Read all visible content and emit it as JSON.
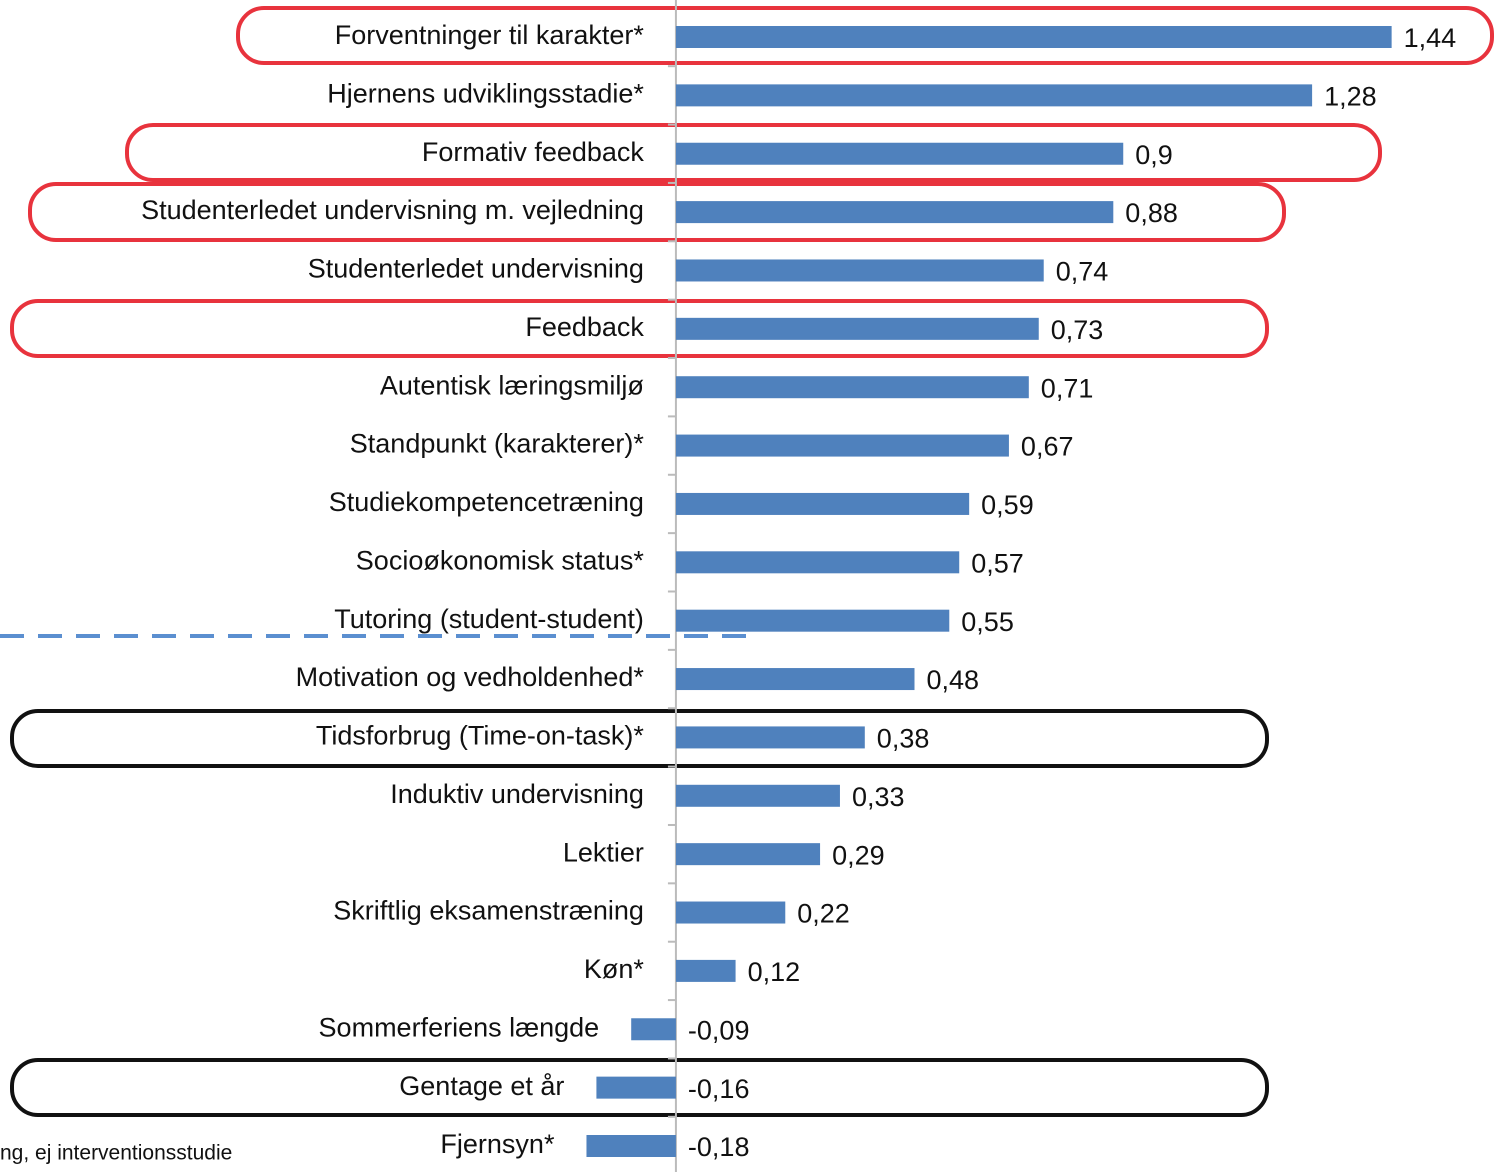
{
  "chart_data": {
    "type": "hbar",
    "categories": [
      "Forventninger til karakter*",
      "Hjernens udviklingsstadie*",
      "Formativ feedback",
      "Studenterledet undervisning m. vejledning",
      "Studenterledet undervisning",
      "Feedback",
      "Autentisk læringsmiljø",
      "Standpunkt (karakterer)*",
      "Studiekompetencetræning",
      "Socioøkonomisk status*",
      "Tutoring (student-student)",
      "Motivation og vedholdenhed*",
      "Tidsforbrug (Time-on-task)*",
      "Induktiv undervisning",
      "Lektier",
      "Skriftlig eksamenstræning",
      "Køn*",
      "Sommerferiens længde",
      "Gentage et år",
      "Fjernsyn*"
    ],
    "values": [
      1.44,
      1.28,
      0.9,
      0.88,
      0.74,
      0.73,
      0.71,
      0.67,
      0.59,
      0.57,
      0.55,
      0.48,
      0.38,
      0.33,
      0.29,
      0.22,
      0.12,
      -0.09,
      -0.16,
      -0.18
    ],
    "value_labels": [
      "1,44",
      "1,28",
      "0,9",
      "0,88",
      "0,74",
      "0,73",
      "0,71",
      "0,67",
      "0,59",
      "0,57",
      "0,55",
      "0,48",
      "0,38",
      "0,33",
      "0,29",
      "0,22",
      "0,12",
      "-0,09",
      "-0,16",
      "-0,18"
    ],
    "color": "#4f81bd",
    "xlim": [
      -1.36,
      1.65
    ],
    "annotation": "ng, ej interventionsstudie"
  }
}
